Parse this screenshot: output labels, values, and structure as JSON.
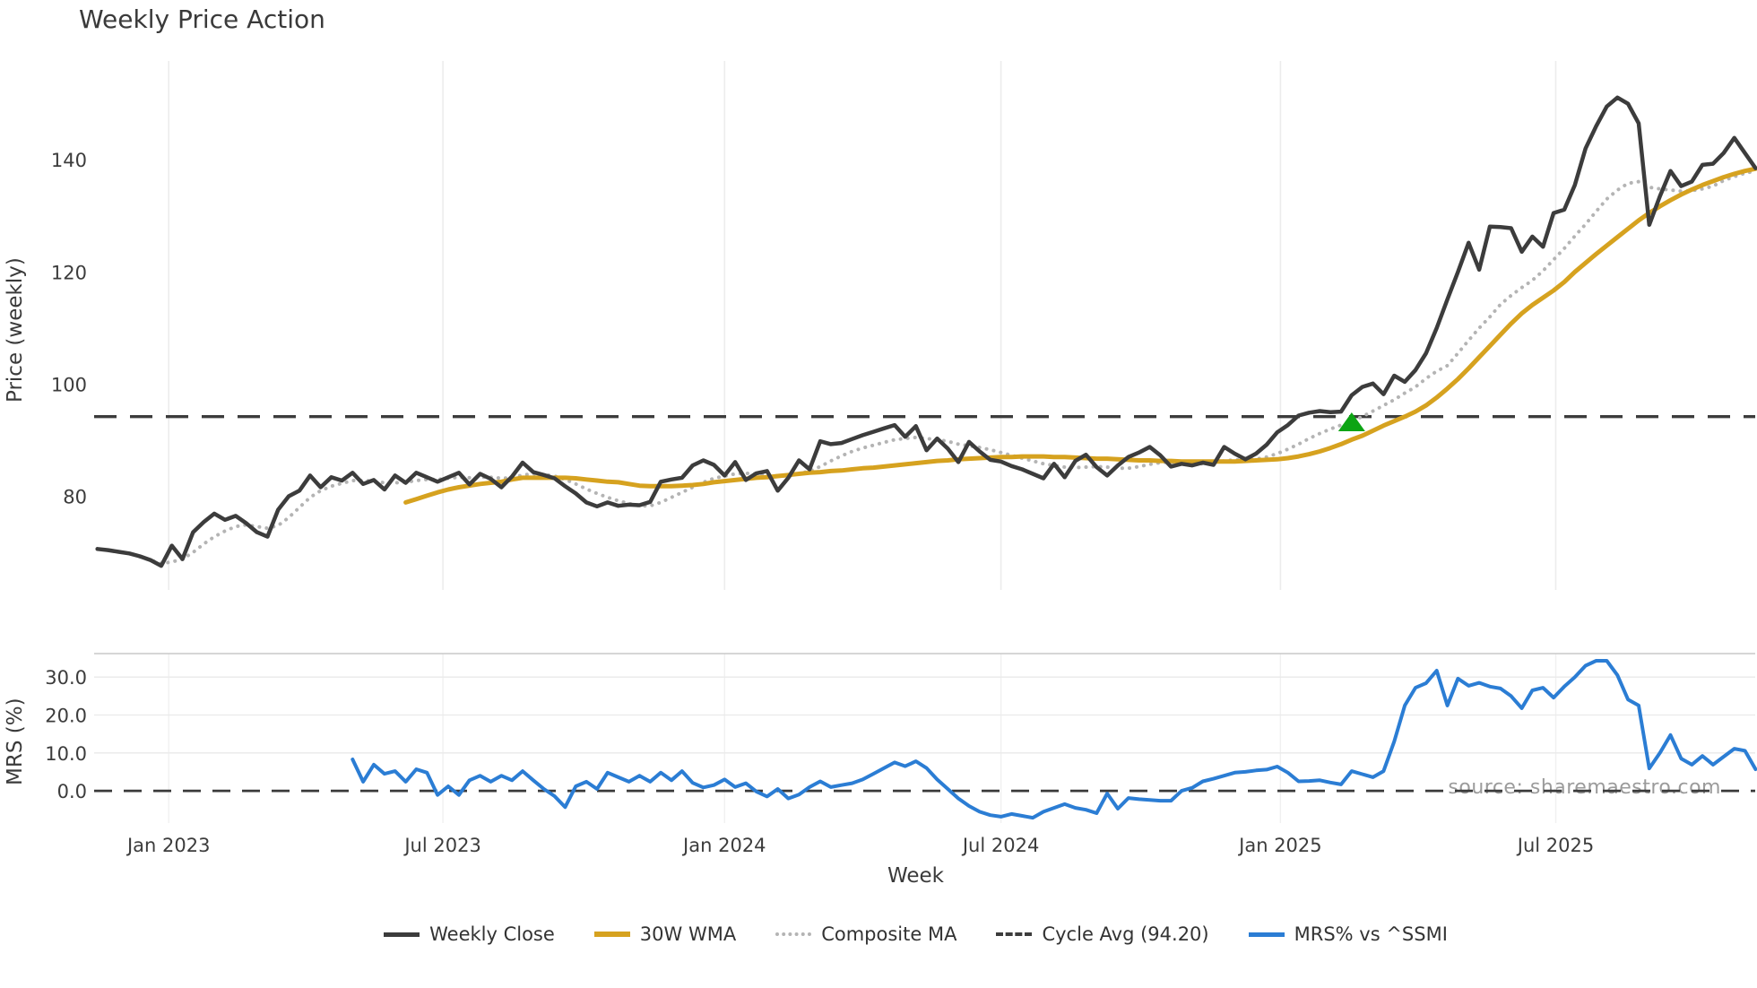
{
  "chart": {
    "title": "Weekly Price Action",
    "xlabel": "Week",
    "ylabel_top": "Price (weekly)",
    "ylabel_bottom": "MRS (%)",
    "watermark": "source: sharemaestro.com",
    "background_color": "#ffffff",
    "gridline_color": "#ececec",
    "spine_color": "#c9c9c9",
    "tick_label_color": "#3c3c3c"
  },
  "legend": {
    "items": [
      {
        "label": "Weekly Close",
        "color": "#3c3c3c",
        "line": "solid",
        "thickness": 5
      },
      {
        "label": "30W WMA",
        "color": "#d6a21f",
        "line": "solid",
        "thickness": 6
      },
      {
        "label": "Composite MA",
        "color": "#b4b4b4",
        "line": "dotted",
        "thickness": 4
      },
      {
        "label": "Cycle Avg (94.20)",
        "color": "#3c3c3c",
        "line": "dashed",
        "thickness": 4
      },
      {
        "label": "MRS% vs ^SSMI",
        "color": "#2b7dd4",
        "line": "solid",
        "thickness": 5
      }
    ]
  },
  "chart_data": {
    "type": "line",
    "title": "Weekly Price Action",
    "xlabel": "Week",
    "x_unit": "week_index",
    "x_ticks": [
      {
        "week": 8.7,
        "label": "Jan 2023"
      },
      {
        "week": 34.5,
        "label": "Jul 2023"
      },
      {
        "week": 61.0,
        "label": "Jan 2024"
      },
      {
        "week": 87.0,
        "label": "Jul 2024"
      },
      {
        "week": 113.3,
        "label": "Jan 2025"
      },
      {
        "week": 139.2,
        "label": "Jul 2025"
      }
    ],
    "panels": [
      {
        "name": "price",
        "ylabel": "Price (weekly)",
        "ylim": [
          63.3,
          158.1
        ],
        "yticks": [
          80,
          100,
          120,
          140
        ],
        "cycle_avg_line": {
          "value": 94.2,
          "style": "dashed",
          "color": "#3c3c3c",
          "label": "Cycle Avg (94.20)"
        },
        "signal_marker": {
          "shape": "triangle-up",
          "color": "#0da414",
          "week": 120,
          "price": 93.2
        },
        "series": [
          {
            "name": "Weekly Close",
            "color": "#3c3c3c",
            "style": "solid",
            "width": 4.5,
            "start_week": 2,
            "values": [
              70.6,
              70.4,
              70.1,
              69.8,
              69.3,
              68.6,
              67.6,
              71.2,
              68.8,
              73.6,
              75.4,
              76.9,
              75.8,
              76.5,
              75.2,
              73.6,
              72.8,
              77.6,
              80.0,
              81.0,
              83.7,
              81.6,
              83.4,
              82.8,
              84.2,
              82.2,
              82.9,
              81.2,
              83.7,
              82.4,
              84.2,
              83.4,
              82.6,
              83.4,
              84.2,
              82.1,
              84.0,
              83.1,
              81.6,
              83.5,
              86.0,
              84.3,
              83.8,
              83.2,
              81.8,
              80.5,
              78.9,
              78.2,
              78.9,
              78.3,
              78.5,
              78.4,
              79.0,
              82.6,
              83.0,
              83.3,
              85.5,
              86.4,
              85.6,
              83.7,
              86.1,
              82.9,
              84.1,
              84.5,
              81.0,
              83.3,
              86.4,
              84.8,
              89.8,
              89.3,
              89.5,
              90.2,
              90.9,
              91.5,
              92.1,
              92.7,
              90.6,
              92.5,
              88.2,
              90.3,
              88.5,
              86.1,
              89.7,
              88.0,
              86.5,
              86.2,
              85.4,
              84.8,
              84.0,
              83.2,
              85.8,
              83.4,
              86.3,
              87.4,
              85.2,
              83.7,
              85.5,
              87.0,
              87.8,
              88.8,
              87.3,
              85.3,
              85.8,
              85.5,
              86.0,
              85.6,
              88.8,
              87.6,
              86.6,
              87.6,
              89.2,
              91.4,
              92.7,
              94.4,
              94.9,
              95.2,
              95.0,
              95.1,
              98.0,
              99.5,
              100.1,
              98.2,
              101.5,
              100.4,
              102.5,
              105.5,
              110.0,
              115.1,
              120.0,
              125.2,
              120.4,
              128.1,
              128.0,
              127.8,
              123.6,
              126.3,
              124.5,
              130.5,
              131.1,
              135.5,
              142.0,
              146.0,
              149.5,
              151.1,
              150.0,
              146.5,
              128.4,
              133.5,
              138.0,
              135.3,
              136.1,
              139.1,
              139.3,
              141.2,
              143.9,
              141.2,
              138.5
            ]
          },
          {
            "name": "30W WMA",
            "color": "#d6a21f",
            "style": "solid",
            "width": 5,
            "start_week": 31,
            "values": [
              78.9,
              79.5,
              80.1,
              80.7,
              81.2,
              81.6,
              81.9,
              82.2,
              82.4,
              82.6,
              83.0,
              83.3,
              83.3,
              83.3,
              83.3,
              83.3,
              83.2,
              83.0,
              82.8,
              82.6,
              82.5,
              82.2,
              81.9,
              81.8,
              81.8,
              81.8,
              81.9,
              82.0,
              82.2,
              82.5,
              82.7,
              82.9,
              83.1,
              83.3,
              83.4,
              83.6,
              83.8,
              84.0,
              84.2,
              84.3,
              84.5,
              84.6,
              84.8,
              85.0,
              85.1,
              85.3,
              85.5,
              85.7,
              85.9,
              86.1,
              86.3,
              86.4,
              86.6,
              86.7,
              86.8,
              86.9,
              87.0,
              87.0,
              87.1,
              87.1,
              87.1,
              87.0,
              87.0,
              86.9,
              86.8,
              86.7,
              86.7,
              86.6,
              86.5,
              86.4,
              86.4,
              86.3,
              86.3,
              86.2,
              86.2,
              86.2,
              86.2,
              86.2,
              86.2,
              86.3,
              86.4,
              86.5,
              86.6,
              86.8,
              87.1,
              87.5,
              88.0,
              88.6,
              89.3,
              90.1,
              90.8,
              91.7,
              92.6,
              93.4,
              94.2,
              95.1,
              96.2,
              97.6,
              99.2,
              100.9,
              102.8,
              104.8,
              106.8,
              108.8,
              110.8,
              112.6,
              114.1,
              115.4,
              116.7,
              118.2,
              120.0,
              121.6,
              123.2,
              124.7,
              126.2,
              127.7,
              129.2,
              130.5,
              131.7,
              132.8,
              133.8,
              134.7,
              135.5,
              136.2,
              136.9,
              137.5,
              138.0,
              138.4
            ]
          },
          {
            "name": "Composite MA",
            "color": "#b4b4b4",
            "style": "dotted",
            "width": 4,
            "start_week": 6,
            "values": [
              69.2,
              68.6,
              68.0,
              68.3,
              68.8,
              70.0,
              71.5,
              72.8,
              73.8,
              74.6,
              74.9,
              74.6,
              74.3,
              74.8,
              76.2,
              78.0,
              79.8,
              81.0,
              81.8,
              82.3,
              82.8,
              82.8,
              82.7,
              82.4,
              82.4,
              82.5,
              82.8,
              83.0,
              83.0,
              83.2,
              83.4,
              83.3,
              83.4,
              83.4,
              83.2,
              83.3,
              83.8,
              84.0,
              83.9,
              83.6,
              83.0,
              82.2,
              81.3,
              80.5,
              79.8,
              79.2,
              78.7,
              78.3,
              78.3,
              78.9,
              79.8,
              80.7,
              81.6,
              82.5,
              83.2,
              83.6,
              84.0,
              84.1,
              84.0,
              83.9,
              83.6,
              83.6,
              84.0,
              84.5,
              85.3,
              86.3,
              87.2,
              88.0,
              88.6,
              89.1,
              89.6,
              90.1,
              90.3,
              90.5,
              90.3,
              90.1,
              89.8,
              89.3,
              89.0,
              88.7,
              88.3,
              87.8,
              87.3,
              86.8,
              86.3,
              85.8,
              85.5,
              85.2,
              85.1,
              85.2,
              85.3,
              85.2,
              85.0,
              85.0,
              85.3,
              85.7,
              86.0,
              86.1,
              86.0,
              85.9,
              85.8,
              86.0,
              86.3,
              86.5,
              86.5,
              86.6,
              87.0,
              87.6,
              88.4,
              89.3,
              90.3,
              91.2,
              92.0,
              92.7,
              93.4,
              94.2,
              95.2,
              96.2,
              97.2,
              98.4,
              99.5,
              101.0,
              102.3,
              103.3,
              105.5,
              107.8,
              110.0,
              112.0,
              114.2,
              115.8,
              117.2,
              118.5,
              120.2,
              122.2,
              124.2,
              126.4,
              128.5,
              130.8,
              133.0,
              134.6,
              135.8,
              136.1,
              135.1,
              134.8,
              134.6,
              134.4,
              134.5,
              134.8,
              135.3,
              136.3,
              137.0,
              137.6,
              138.0
            ]
          }
        ]
      },
      {
        "name": "mrs",
        "ylabel": "MRS (%)",
        "ylim": [
          -9.2,
          36.2
        ],
        "yticks": [
          0,
          10,
          20,
          30
        ],
        "ytick_labels": [
          "0.0",
          "10.0",
          "20.0",
          "30.0"
        ],
        "zero_line": {
          "value": 0,
          "style": "dashed",
          "color": "#3a3a3a"
        },
        "series": [
          {
            "name": "MRS% vs ^SSMI",
            "color": "#2b7dd4",
            "style": "solid",
            "width": 4,
            "start_week": 26,
            "values": [
              8.3,
              2.4,
              6.9,
              4.5,
              5.2,
              2.4,
              5.7,
              4.8,
              -1.1,
              1.2,
              -1.1,
              2.8,
              4.0,
              2.4,
              4.0,
              2.8,
              5.2,
              2.8,
              0.5,
              -1.4,
              -4.3,
              1.2,
              2.4,
              0.5,
              4.8,
              3.6,
              2.4,
              4.0,
              2.4,
              4.8,
              2.8,
              5.2,
              2.1,
              0.9,
              1.5,
              3.0,
              1.0,
              2.0,
              -0.2,
              -1.5,
              0.5,
              -2.0,
              -1.0,
              1.0,
              2.5,
              1.0,
              1.5,
              2.0,
              3.0,
              4.5,
              6.0,
              7.5,
              6.5,
              7.8,
              6.0,
              3.0,
              0.5,
              -2.0,
              -4.0,
              -5.5,
              -6.4,
              -6.8,
              -6.1,
              -6.6,
              -7.1,
              -5.5,
              -4.5,
              -3.5,
              -4.5,
              -5.0,
              -5.9,
              -0.7,
              -4.7,
              -1.9,
              -2.2,
              -2.4,
              -2.6,
              -2.6,
              0.0,
              0.8,
              2.5,
              3.2,
              4.0,
              4.8,
              5.0,
              5.4,
              5.6,
              6.4,
              4.8,
              2.5,
              2.6,
              2.8,
              2.2,
              1.7,
              5.2,
              4.4,
              3.6,
              5.2,
              13.0,
              22.5,
              27.2,
              28.4,
              31.7,
              22.5,
              29.6,
              27.7,
              28.5,
              27.5,
              27.0,
              25.0,
              21.8,
              26.5,
              27.2,
              24.6,
              27.5,
              30.0,
              33.0,
              34.3,
              34.3,
              30.5,
              24.1,
              22.5,
              5.9,
              10.0,
              14.7,
              8.5,
              6.9,
              9.2,
              6.9,
              9.0,
              11.1,
              10.6,
              5.7
            ]
          }
        ]
      }
    ],
    "watermark": "source: sharemaestro.com",
    "legend_position": "bottom-center",
    "grid": "vertical-both-panels, horizontal-bottom-panel"
  }
}
